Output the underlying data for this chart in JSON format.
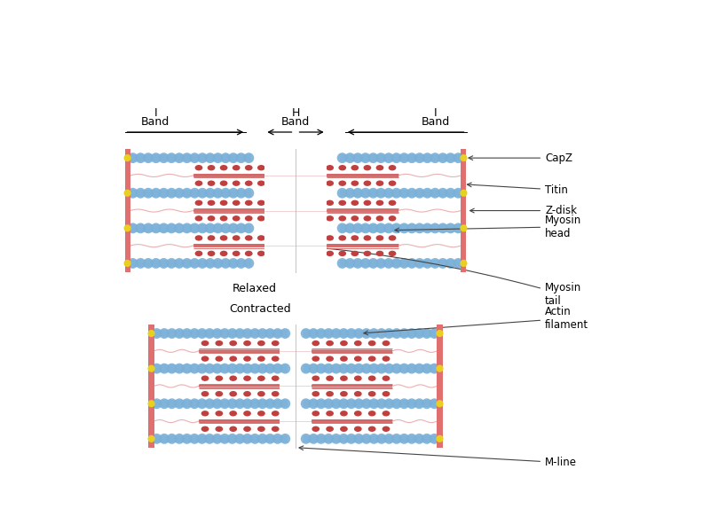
{
  "background_color": "#ffffff",
  "z_disk_color": "#e07070",
  "actin_color": "#7ab0d8",
  "myosin_body_color": "#d06060",
  "myosin_head_color": "#c04040",
  "myosin_line_color": "#cc5555",
  "titin_color": "#e09090",
  "yellow_dot_color": "#e8d020",
  "annotation_color": "#444444",
  "mline_color": "#bbbbbb",
  "labels": [
    "CapZ",
    "Titin",
    "Z-disk",
    "Myosin\nhead",
    "Myosin\ntail",
    "Actin\nfilament",
    "M-line"
  ],
  "relaxed_label": "Relaxed",
  "contracted_label": "Contracted",
  "fig_w": 8.0,
  "fig_h": 6.0,
  "dpi": 100
}
